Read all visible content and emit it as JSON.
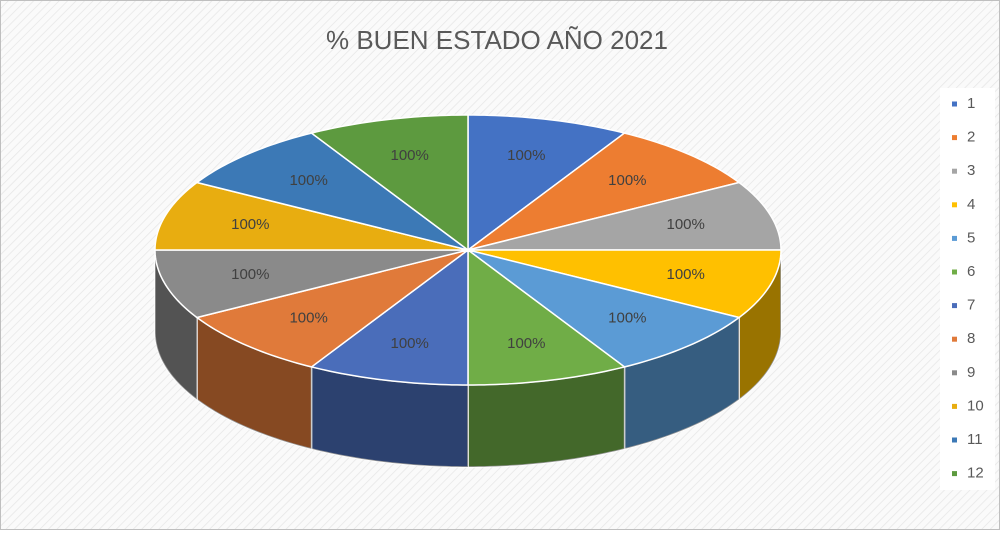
{
  "chart_data": {
    "type": "pie3d",
    "title": "% BUEN ESTADO AÑO 2021",
    "categories": [
      "1",
      "2",
      "3",
      "4",
      "5",
      "6",
      "7",
      "8",
      "9",
      "10",
      "11",
      "12"
    ],
    "values": [
      100,
      100,
      100,
      100,
      100,
      100,
      100,
      100,
      100,
      100,
      100,
      100
    ],
    "value_labels": [
      "100%",
      "100%",
      "100%",
      "100%",
      "100%",
      "100%",
      "100%",
      "100%",
      "100%",
      "100%",
      "100%",
      "100%"
    ],
    "colors": [
      "#4472c4",
      "#ed7d31",
      "#a5a5a5",
      "#ffc000",
      "#5b9bd5",
      "#70ad47",
      "#4a6dba",
      "#e07a3a",
      "#8a8a8a",
      "#e8ad10",
      "#3c79b6",
      "#5d9a3f"
    ],
    "legend": "right"
  }
}
